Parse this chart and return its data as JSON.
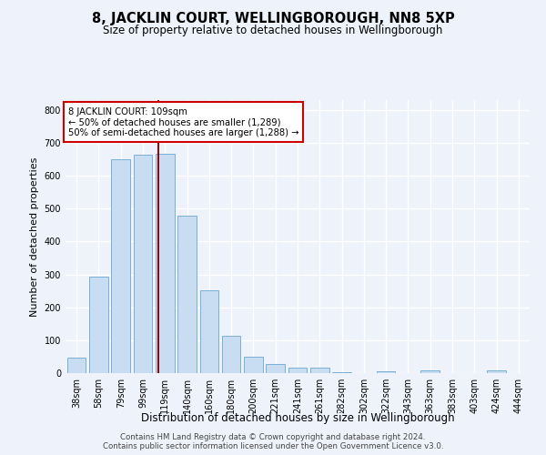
{
  "title": "8, JACKLIN COURT, WELLINGBOROUGH, NN8 5XP",
  "subtitle": "Size of property relative to detached houses in Wellingborough",
  "xlabel": "Distribution of detached houses by size in Wellingborough",
  "ylabel": "Number of detached properties",
  "bar_labels": [
    "38sqm",
    "58sqm",
    "79sqm",
    "99sqm",
    "119sqm",
    "140sqm",
    "160sqm",
    "180sqm",
    "200sqm",
    "221sqm",
    "241sqm",
    "261sqm",
    "282sqm",
    "302sqm",
    "322sqm",
    "343sqm",
    "363sqm",
    "383sqm",
    "403sqm",
    "424sqm",
    "444sqm"
  ],
  "bar_values": [
    47,
    293,
    651,
    663,
    666,
    479,
    252,
    113,
    50,
    28,
    17,
    17,
    3,
    0,
    5,
    0,
    9,
    0,
    0,
    8,
    0
  ],
  "bar_color": "#c9ddf2",
  "bar_edge_color": "#7aafd4",
  "annotation_text_line1": "8 JACKLIN COURT: 109sqm",
  "annotation_text_line2": "← 50% of detached houses are smaller (1,289)",
  "annotation_text_line3": "50% of semi-detached houses are larger (1,288) →",
  "vline_color": "#990000",
  "annotation_box_color": "#ffffff",
  "annotation_box_edge": "#cc0000",
  "ylim": [
    0,
    830
  ],
  "yticks": [
    0,
    100,
    200,
    300,
    400,
    500,
    600,
    700,
    800
  ],
  "footer_line1": "Contains HM Land Registry data © Crown copyright and database right 2024.",
  "footer_line2": "Contains public sector information licensed under the Open Government Licence v3.0.",
  "bg_color": "#eef2fa",
  "grid_color": "#ffffff",
  "title_fontsize": 10.5,
  "subtitle_fontsize": 8.5,
  "ylabel_fontsize": 8.0,
  "xlabel_fontsize": 8.5,
  "tick_fontsize": 7.0,
  "annotation_fontsize": 7.2,
  "footer_fontsize": 6.2,
  "vline_x_index": 3.72
}
